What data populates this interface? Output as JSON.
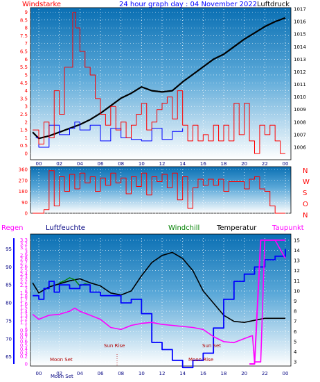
{
  "colors": {
    "red": "#ff0000",
    "blue": "#0000ff",
    "black": "#000000",
    "magenta": "#ff00ff",
    "green": "#008000",
    "navy": "#000080",
    "frame": "#000000"
  },
  "chart_data": [
    {
      "type": "line",
      "panel": "wind-and-pressure",
      "title": "24 hour graph day : 04 November 2022",
      "left_label": "Windstarke",
      "right_label": "Luftdruck",
      "x_ticks": [
        "00",
        "02",
        "04",
        "06",
        "08",
        "10",
        "12",
        "14",
        "16",
        "18",
        "20",
        "22",
        "00"
      ],
      "x_range_hours": [
        23.3,
        24.0
      ],
      "left_ticks": [
        "0",
        "0.5",
        "1",
        "1.5",
        "2",
        "2.5",
        "3",
        "3.5",
        "4",
        "4.5",
        "5",
        "5.5",
        "6",
        "6.5",
        "7",
        "7.5",
        "8",
        "8.5",
        "9"
      ],
      "left_range": [
        0,
        9.2
      ],
      "right_ticks": [
        "1006",
        "1007",
        "1008",
        "1009",
        "1010",
        "1011",
        "1012",
        "1013",
        "1014",
        "1015",
        "1016",
        "1017"
      ],
      "right_range": [
        1005.5,
        1017.0
      ],
      "series": [
        {
          "role": "pressure",
          "color": "#000000",
          "x": [
            -0.6,
            0,
            1,
            2,
            3,
            4,
            5,
            6,
            7,
            8,
            9,
            10,
            11,
            12,
            13,
            14,
            15,
            16,
            17,
            18,
            19,
            20,
            21,
            22,
            23,
            24
          ],
          "y": [
            1007.2,
            1006.7,
            1006.9,
            1007.2,
            1007.5,
            1007.8,
            1008.2,
            1008.7,
            1009.3,
            1009.9,
            1010.3,
            1010.8,
            1010.5,
            1010.4,
            1010.5,
            1011.2,
            1011.8,
            1012.4,
            1013.0,
            1013.4,
            1014.0,
            1014.6,
            1015.1,
            1015.6,
            1016.0,
            1016.3
          ]
        },
        {
          "role": "wind-blue",
          "color": "#0000ff",
          "x": [
            -0.3,
            0,
            1,
            2,
            3,
            3.5,
            4,
            5,
            6,
            7,
            8,
            9,
            10,
            11,
            12,
            13,
            14
          ],
          "y": [
            1.0,
            0.4,
            1.8,
            1.2,
            1.6,
            2.0,
            1.5,
            1.8,
            0.8,
            1.6,
            1.0,
            0.9,
            0.8,
            1.6,
            0.9,
            1.4,
            1.6
          ]
        },
        {
          "role": "wind-red",
          "color": "#ff0000",
          "x": [
            -0.6,
            0,
            0.5,
            1,
            1.5,
            2,
            2.5,
            3,
            3.3,
            3.6,
            4,
            4.5,
            5,
            5.5,
            6,
            6.5,
            7,
            7.5,
            8,
            8.5,
            9,
            9.5,
            10,
            10.5,
            11,
            11.5,
            12,
            12.5,
            13,
            13.5,
            14,
            14.5,
            15,
            15.5,
            16,
            16.5,
            17,
            17.5,
            18,
            18.5,
            19,
            19.5,
            20,
            20.5,
            21,
            21.5,
            22,
            22.5,
            23,
            23.5,
            24
          ],
          "y": [
            1.5,
            0.6,
            2.0,
            1.0,
            4.0,
            2.5,
            5.5,
            5.5,
            9.0,
            8.0,
            6.5,
            5.5,
            5.0,
            3.5,
            2.5,
            1.8,
            3.0,
            1.5,
            2.0,
            1.0,
            1.8,
            2.5,
            3.2,
            1.5,
            2.0,
            2.8,
            3.2,
            3.6,
            2.2,
            4.0,
            1.8,
            0.8,
            1.8,
            0.8,
            1.2,
            0.8,
            1.8,
            0.8,
            1.8,
            0.8,
            3.2,
            1.2,
            3.2,
            0.8,
            0.0,
            1.8,
            1.2,
            1.8,
            0.8,
            0.0,
            0.0
          ]
        }
      ]
    },
    {
      "type": "line",
      "panel": "wind-direction",
      "right_labels": [
        "N",
        "W",
        "S",
        "O",
        "N"
      ],
      "left_ticks": [
        "0",
        "90",
        "180",
        "270",
        "360"
      ],
      "left_range": [
        0,
        360
      ],
      "series": [
        {
          "role": "direction",
          "color": "#ff0000",
          "x": [
            -0.6,
            0,
            0.5,
            1,
            1.5,
            2,
            2.5,
            3,
            3.5,
            4,
            4.5,
            5,
            5.5,
            6,
            6.5,
            7,
            7.5,
            8,
            8.5,
            9,
            9.5,
            10,
            10.5,
            11,
            11.5,
            12,
            12.5,
            13,
            13.5,
            14,
            14.5,
            15,
            15.5,
            16,
            16.5,
            17,
            17.5,
            18,
            18.5,
            19,
            19.5,
            20,
            20.5,
            21,
            21.5,
            22,
            22.5,
            23,
            23.5,
            24
          ],
          "y": [
            0,
            0,
            30,
            350,
            60,
            300,
            180,
            320,
            200,
            330,
            250,
            300,
            180,
            290,
            230,
            330,
            250,
            290,
            160,
            300,
            220,
            330,
            150,
            300,
            260,
            320,
            210,
            330,
            110,
            300,
            40,
            210,
            280,
            230,
            280,
            230,
            280,
            180,
            260,
            260,
            260,
            200,
            280,
            300,
            200,
            180,
            60,
            0,
            0,
            0
          ]
        }
      ]
    },
    {
      "type": "line",
      "panel": "humidity-temperature",
      "legend": [
        "Regen",
        "Luftfeuchte",
        "Windchill",
        "Temperatur",
        "Taupunkt"
      ],
      "left_ticks_humidity": [
        "65",
        "70",
        "75",
        "80",
        "85",
        "90",
        "95"
      ],
      "left_ticks_rain": [
        "0",
        "0.2",
        "0.3",
        "0.4",
        "0.5",
        "0.6",
        "0.7",
        "0.8",
        "0.9",
        "1",
        "1.1",
        "1.2",
        "1.3",
        "1.4",
        "1.5",
        "1.6",
        "1.7",
        "1.8",
        "1.9",
        "2",
        "2.1",
        "2.2",
        "2.3",
        "2.4",
        "2.5",
        "2.6",
        "2.7",
        "2.8",
        "2.9",
        "3",
        "3.1",
        "3.2",
        "3.3"
      ],
      "right_ticks": [
        "3",
        "4",
        "5",
        "6",
        "7",
        "8",
        "9",
        "10",
        "11",
        "12",
        "13",
        "14",
        "15"
      ],
      "annotations": [
        "Moon Set",
        "Moon Set",
        "Sun Rise",
        "Sun Set",
        "Moon Rise"
      ],
      "x_ticks": [
        "00",
        "02",
        "04",
        "06",
        "08",
        "10",
        "12",
        "14",
        "16",
        "18",
        "20",
        "22",
        "00"
      ],
      "series": [
        {
          "role": "temperatur",
          "color": "#000000",
          "x": [
            -0.6,
            0,
            1,
            2,
            3,
            4,
            5,
            6,
            7,
            8,
            9,
            10,
            11,
            12,
            13,
            14,
            15,
            16,
            17,
            18,
            19,
            20,
            21,
            22,
            23,
            24
          ],
          "y": [
            10.8,
            9.8,
            10.4,
            10.7,
            11.0,
            11.2,
            10.8,
            10.5,
            9.8,
            9.6,
            10.0,
            11.5,
            12.8,
            13.5,
            13.8,
            13.2,
            12.0,
            10.0,
            8.8,
            7.6,
            7.0,
            6.9,
            7.1,
            7.3,
            7.3,
            7.3
          ]
        },
        {
          "role": "windchill",
          "color": "#008000",
          "x": [
            2,
            2.5,
            3,
            3.5,
            4,
            4.5,
            5
          ],
          "y": [
            10.8,
            11.0,
            11.3,
            11.1,
            10.5,
            10.7,
            10.6
          ]
        },
        {
          "role": "luftfeuchte",
          "color": "#0000ff",
          "x": [
            -0.6,
            0,
            0.5,
            1,
            1.5,
            2,
            3,
            4,
            5,
            6,
            7,
            8,
            9,
            10,
            11,
            12,
            13,
            14,
            15,
            16,
            17,
            18,
            19,
            20,
            21,
            22,
            23,
            24
          ],
          "y": [
            82,
            81,
            84,
            86,
            83,
            85,
            84,
            85,
            83,
            82,
            82,
            80,
            81,
            77,
            69,
            67,
            64,
            62,
            64,
            66,
            73,
            81,
            86,
            88,
            90,
            92,
            93,
            95
          ]
        },
        {
          "role": "taupunkt",
          "color": "#ff00ff",
          "x": [
            -0.6,
            0,
            1,
            2,
            3,
            3.5,
            4,
            5,
            6,
            7,
            8,
            9,
            10,
            11,
            12,
            13,
            14,
            15,
            16,
            17,
            18,
            19,
            20,
            20.8,
            21.0,
            21.6,
            22,
            22.5,
            23,
            24
          ],
          "y": [
            7.7,
            7.2,
            7.6,
            7.7,
            8.0,
            8.3,
            8.0,
            7.6,
            7.2,
            6.4,
            6.2,
            6.6,
            6.8,
            6.9,
            6.7,
            6.6,
            6.5,
            6.4,
            6.2,
            5.5,
            5.0,
            4.9,
            5.3,
            5.6,
            3.0,
            3.0,
            15.0,
            15.0,
            15.0,
            13.2
          ]
        },
        {
          "role": "regen",
          "color": "#ff00ff",
          "x": [
            20.5,
            21.0,
            21.6,
            22,
            23,
            24
          ],
          "y": [
            0,
            0,
            3.3,
            3.3,
            3.3,
            3.3
          ]
        }
      ]
    }
  ],
  "texts": {
    "p1_left": "Windstarke",
    "p1_title": "24 hour graph day : 04 November 2022",
    "p1_right": "Luftdruck",
    "p3_regen": "Regen",
    "p3_luftfeuchte": "Luftfeuchte",
    "p3_windchill": "Windchill",
    "p3_temperatur": "Temperatur",
    "p3_taupunkt": "Taupunkt",
    "moon_set_1": "Moon Set",
    "moon_set_2": "Moon Set",
    "sun_rise": "Sun Rise",
    "sun_set": "Sun Set",
    "moon_rise": "Moon Rise"
  }
}
